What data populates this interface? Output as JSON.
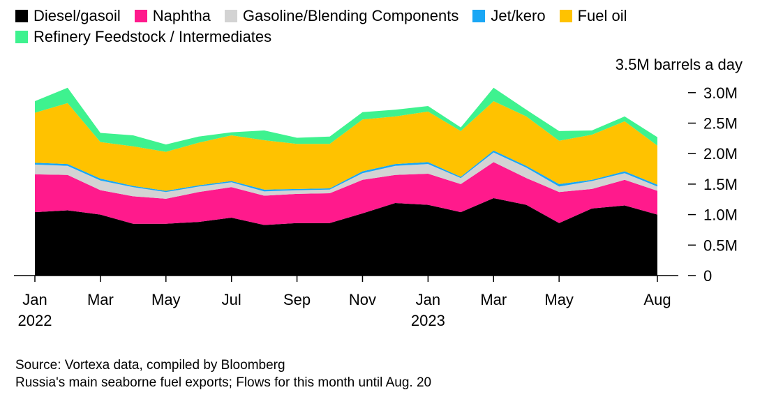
{
  "chart_data": {
    "type": "area",
    "stacked": true,
    "unit_label": "3.5M barrels a day",
    "x": [
      "2022-01",
      "2022-02",
      "2022-03",
      "2022-04",
      "2022-05",
      "2022-06",
      "2022-07",
      "2022-08",
      "2022-09",
      "2022-10",
      "2022-11",
      "2022-12",
      "2023-01",
      "2023-02",
      "2023-03",
      "2023-04",
      "2023-05",
      "2023-06",
      "2023-07",
      "2023-08"
    ],
    "x_ticks": [
      {
        "index": 0,
        "label": "Jan",
        "year": "2022"
      },
      {
        "index": 2,
        "label": "Mar",
        "year": ""
      },
      {
        "index": 4,
        "label": "May",
        "year": ""
      },
      {
        "index": 6,
        "label": "Jul",
        "year": ""
      },
      {
        "index": 8,
        "label": "Sep",
        "year": ""
      },
      {
        "index": 10,
        "label": "Nov",
        "year": ""
      },
      {
        "index": 12,
        "label": "Jan",
        "year": "2023"
      },
      {
        "index": 14,
        "label": "Mar",
        "year": ""
      },
      {
        "index": 16,
        "label": "May",
        "year": ""
      },
      {
        "index": 19,
        "label": "Aug",
        "year": ""
      }
    ],
    "y_ticks": [
      {
        "value": 0,
        "label": "0"
      },
      {
        "value": 0.5,
        "label": "0.5M"
      },
      {
        "value": 1.0,
        "label": "1.0M"
      },
      {
        "value": 1.5,
        "label": "1.5M"
      },
      {
        "value": 2.0,
        "label": "2.0M"
      },
      {
        "value": 2.5,
        "label": "2.5M"
      },
      {
        "value": 3.0,
        "label": "3.0M"
      }
    ],
    "ylim": [
      0,
      3.5
    ],
    "series": [
      {
        "name": "Diesel/gasoil",
        "color": "#000000",
        "values": [
          1.04,
          1.07,
          1.0,
          0.85,
          0.85,
          0.88,
          0.95,
          0.83,
          0.86,
          0.86,
          1.02,
          1.19,
          1.16,
          1.04,
          1.27,
          1.16,
          0.86,
          1.1,
          1.15,
          1.0
        ]
      },
      {
        "name": "Naphtha",
        "color": "#ff1a8c",
        "values": [
          0.62,
          0.58,
          0.4,
          0.45,
          0.41,
          0.49,
          0.5,
          0.48,
          0.48,
          0.49,
          0.55,
          0.46,
          0.51,
          0.46,
          0.59,
          0.44,
          0.51,
          0.32,
          0.42,
          0.39
        ]
      },
      {
        "name": "Gasoline/Blending Components",
        "color": "#d3d3d3",
        "values": [
          0.16,
          0.15,
          0.16,
          0.15,
          0.11,
          0.09,
          0.08,
          0.07,
          0.06,
          0.06,
          0.11,
          0.15,
          0.16,
          0.1,
          0.16,
          0.17,
          0.09,
          0.13,
          0.11,
          0.07
        ]
      },
      {
        "name": "Jet/kero",
        "color": "#1aa7f5",
        "values": [
          0.03,
          0.03,
          0.03,
          0.02,
          0.02,
          0.02,
          0.02,
          0.03,
          0.02,
          0.02,
          0.03,
          0.03,
          0.03,
          0.02,
          0.03,
          0.03,
          0.04,
          0.02,
          0.03,
          0.03
        ]
      },
      {
        "name": "Fuel oil",
        "color": "#ffc200",
        "values": [
          0.82,
          1.0,
          0.6,
          0.65,
          0.64,
          0.7,
          0.75,
          0.81,
          0.74,
          0.73,
          0.85,
          0.78,
          0.83,
          0.75,
          0.81,
          0.81,
          0.71,
          0.74,
          0.82,
          0.64
        ]
      },
      {
        "name": "Refinery Feedstock / Intermediates",
        "color": "#3ef28f",
        "values": [
          0.19,
          0.25,
          0.15,
          0.18,
          0.12,
          0.1,
          0.05,
          0.16,
          0.1,
          0.12,
          0.12,
          0.11,
          0.09,
          0.06,
          0.22,
          0.11,
          0.16,
          0.07,
          0.08,
          0.14
        ]
      }
    ],
    "legend_position": "top-left",
    "grid": false
  },
  "footer": {
    "source": "Source: Vortexa data, compiled by Bloomberg",
    "note": "Russia's main seaborne fuel exports; Flows for this month until Aug. 20"
  }
}
